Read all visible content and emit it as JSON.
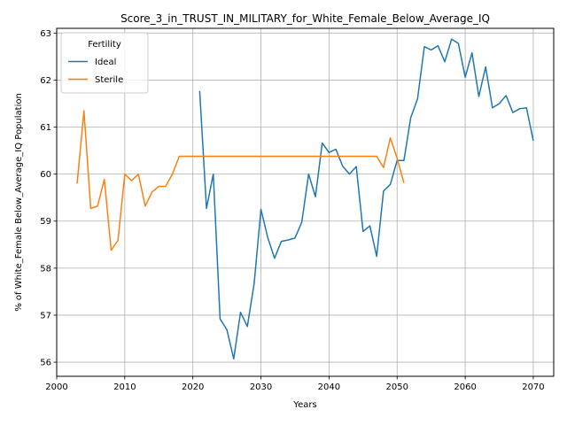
{
  "chart_data": {
    "type": "line",
    "title": "Score_3_in_TRUST_IN_MILITARY_for_White_Female_Below_Average_IQ",
    "xlabel": "Years",
    "ylabel": "% of White_Female Below_Average_IQ Population",
    "xlim": [
      2000,
      2073
    ],
    "ylim": [
      55.7,
      63.1
    ],
    "xticks": [
      2000,
      2010,
      2020,
      2030,
      2040,
      2050,
      2060,
      2070
    ],
    "yticks": [
      56,
      57,
      58,
      59,
      60,
      61,
      62,
      63
    ],
    "grid": true,
    "legend": {
      "title": "Fertility",
      "placement": "top-left"
    },
    "series": [
      {
        "name": "Ideal",
        "color": "#1f77b4",
        "x": [
          2021,
          2022,
          2023,
          2024,
          2025,
          2026,
          2027,
          2028,
          2029,
          2030,
          2031,
          2032,
          2033,
          2034,
          2035,
          2036,
          2037,
          2038,
          2039,
          2040,
          2041,
          2042,
          2043,
          2044,
          2045,
          2046,
          2047,
          2048,
          2049,
          2050,
          2051,
          2052,
          2053,
          2054,
          2055,
          2056,
          2057,
          2058,
          2059,
          2060,
          2061,
          2062,
          2063,
          2064,
          2065,
          2066,
          2067,
          2068,
          2069,
          2070
        ],
        "y": [
          61.77,
          59.27,
          60.0,
          56.92,
          56.69,
          56.07,
          57.06,
          56.76,
          57.67,
          59.25,
          58.65,
          58.21,
          58.57,
          58.6,
          58.64,
          58.98,
          60.0,
          59.52,
          60.66,
          60.46,
          60.53,
          60.17,
          60.0,
          60.16,
          58.78,
          58.9,
          58.25,
          59.64,
          59.78,
          60.29,
          60.29,
          61.2,
          61.6,
          62.71,
          62.64,
          62.73,
          62.39,
          62.87,
          62.78,
          62.06,
          62.58,
          61.65,
          62.28,
          61.41,
          61.5,
          61.67,
          61.31,
          61.39,
          61.41,
          60.71
        ]
      },
      {
        "name": "Sterile",
        "color": "#ff7f0e",
        "x": [
          2003,
          2004,
          2005,
          2006,
          2007,
          2008,
          2009,
          2010,
          2011,
          2012,
          2013,
          2014,
          2015,
          2016,
          2017,
          2018,
          2019,
          2020,
          2021,
          2022,
          2023,
          2024,
          2025,
          2026,
          2027,
          2028,
          2029,
          2030,
          2031,
          2032,
          2033,
          2034,
          2035,
          2036,
          2037,
          2038,
          2039,
          2040,
          2041,
          2042,
          2043,
          2044,
          2045,
          2046,
          2047,
          2048,
          2049,
          2050,
          2051
        ],
        "y": [
          59.8,
          61.35,
          59.27,
          59.32,
          59.89,
          58.38,
          58.59,
          60.0,
          59.86,
          60.0,
          59.32,
          59.62,
          59.74,
          59.74,
          60.0,
          60.38,
          60.38,
          60.38,
          60.38,
          60.38,
          60.38,
          60.38,
          60.38,
          60.38,
          60.38,
          60.38,
          60.38,
          60.38,
          60.38,
          60.38,
          60.38,
          60.38,
          60.38,
          60.38,
          60.38,
          60.38,
          60.38,
          60.38,
          60.38,
          60.38,
          60.38,
          60.38,
          60.38,
          60.38,
          60.38,
          60.14,
          60.77,
          60.34,
          59.81
        ]
      }
    ]
  }
}
